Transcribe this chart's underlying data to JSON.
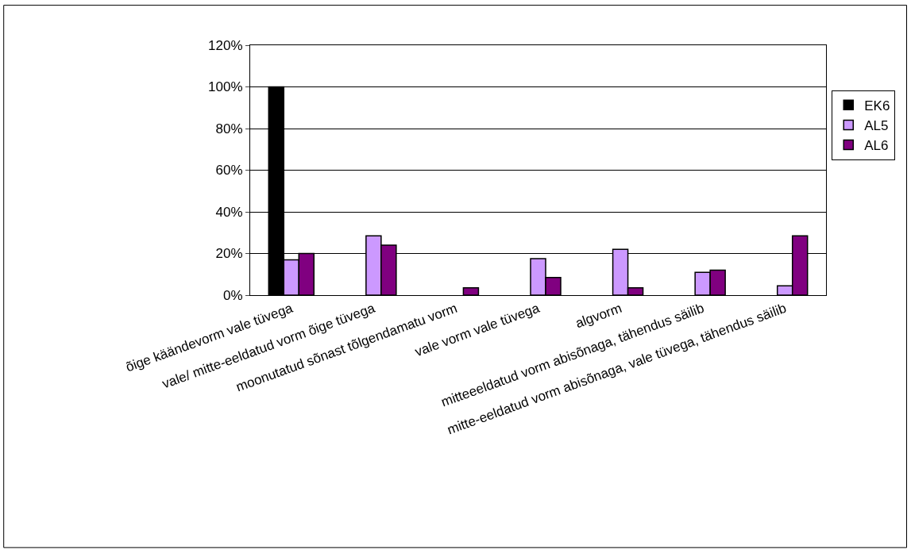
{
  "chart_data": {
    "type": "bar",
    "categories": [
      "õige käändevorm vale tüvega",
      "vale/ mitte-eeldatud vorm õige tüvega",
      "moonutatud sõnast tõlgendamatu vorm",
      "vale vorm vale tüvega",
      "algvorm",
      "mitteeeldatud vorm abisõnaga, tähendus säilib",
      "mitte-eeldatud vorm abisõnaga, vale tüvega, tähendus säilib"
    ],
    "series": [
      {
        "name": "EK6",
        "color": "#000000",
        "values": [
          100,
          null,
          null,
          null,
          null,
          null,
          null
        ]
      },
      {
        "name": "AL5",
        "color": "#cc99ff",
        "values": [
          17,
          28.5,
          null,
          17.5,
          22,
          11,
          4.5
        ]
      },
      {
        "name": "AL6",
        "color": "#800080",
        "values": [
          20,
          24,
          3.5,
          8.5,
          3.5,
          12,
          28.5
        ]
      }
    ],
    "ylim": [
      0,
      120
    ],
    "yticks": [
      {
        "value": 0,
        "label": "0%"
      },
      {
        "value": 20,
        "label": "20%"
      },
      {
        "value": 40,
        "label": "40%"
      },
      {
        "value": 60,
        "label": "60%"
      },
      {
        "value": 80,
        "label": "80%"
      },
      {
        "value": 100,
        "label": "100%"
      },
      {
        "value": 120,
        "label": "120%"
      }
    ],
    "grid": "y",
    "legend": "right"
  }
}
